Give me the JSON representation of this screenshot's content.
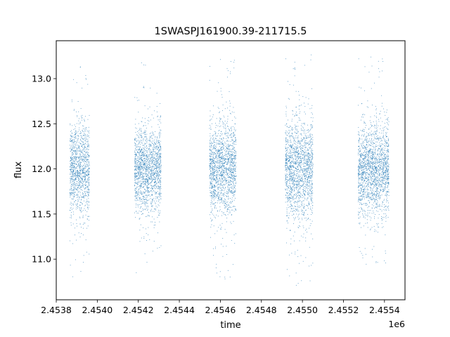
{
  "chart_data": {
    "type": "scatter",
    "title": "1SWASPJ161900.39-211715.5",
    "xlabel": "time",
    "ylabel": "flux",
    "x_offset_label": "1e6",
    "x_scale": 1000000,
    "xlim": [
      2453800,
      2455500
    ],
    "ylim": [
      10.55,
      13.42
    ],
    "x_ticks": [
      {
        "value": 2453800,
        "label": "2.4538"
      },
      {
        "value": 2454000,
        "label": "2.4540"
      },
      {
        "value": 2454200,
        "label": "2.4542"
      },
      {
        "value": 2454400,
        "label": "2.4544"
      },
      {
        "value": 2454600,
        "label": "2.4546"
      },
      {
        "value": 2454800,
        "label": "2.4548"
      },
      {
        "value": 2455000,
        "label": "2.4550"
      },
      {
        "value": 2455200,
        "label": "2.4552"
      },
      {
        "value": 2455400,
        "label": "2.4554"
      }
    ],
    "y_ticks": [
      {
        "value": 11.0,
        "label": "11.0"
      },
      {
        "value": 11.5,
        "label": "11.5"
      },
      {
        "value": 12.0,
        "label": "12.0"
      },
      {
        "value": 12.5,
        "label": "12.5"
      },
      {
        "value": 13.0,
        "label": "13.0"
      }
    ],
    "grid": false,
    "marker_color": "#1f77b4",
    "series": [
      {
        "seasons": [
          {
            "start": 2453865,
            "end": 2453960,
            "median": 12.0,
            "spread": 0.25,
            "y_min": 10.75,
            "y_max": 13.15
          },
          {
            "start": 2454180,
            "end": 2454310,
            "median": 12.0,
            "spread": 0.22,
            "y_min": 10.72,
            "y_max": 13.25
          },
          {
            "start": 2454545,
            "end": 2454675,
            "median": 12.0,
            "spread": 0.25,
            "y_min": 10.75,
            "y_max": 13.22
          },
          {
            "start": 2454915,
            "end": 2455050,
            "median": 12.0,
            "spread": 0.27,
            "y_min": 10.7,
            "y_max": 13.28
          },
          {
            "start": 2455270,
            "end": 2455420,
            "median": 12.0,
            "spread": 0.25,
            "y_min": 10.9,
            "y_max": 13.25
          }
        ]
      }
    ]
  }
}
